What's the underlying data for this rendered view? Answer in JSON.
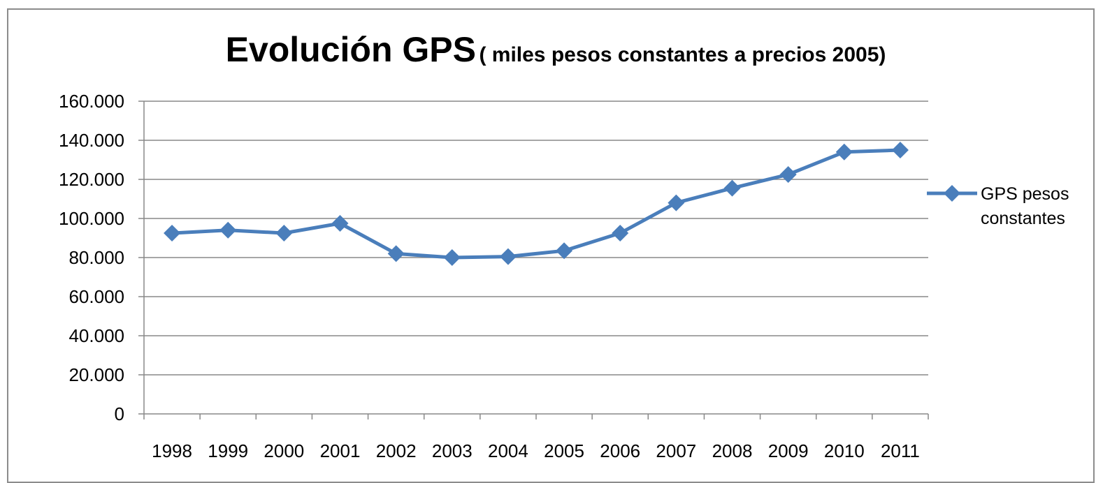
{
  "chart_data": {
    "type": "line",
    "title": "Evolución GPS",
    "subtitle": "( miles pesos constantes a precios 2005)",
    "xlabel": "",
    "ylabel": "",
    "categories": [
      "1998",
      "1999",
      "2000",
      "2001",
      "2002",
      "2003",
      "2004",
      "2005",
      "2006",
      "2007",
      "2008",
      "2009",
      "2010",
      "2011"
    ],
    "series": [
      {
        "name": "GPS pesos constantes",
        "values": [
          92500,
          94000,
          92500,
          97500,
          82000,
          80000,
          80500,
          83500,
          92500,
          108000,
          115500,
          122500,
          134000,
          135000
        ]
      }
    ],
    "ylim": [
      0,
      160000
    ],
    "yticks": [
      0,
      20000,
      40000,
      60000,
      80000,
      100000,
      120000,
      140000,
      160000
    ],
    "ytick_labels": [
      "0",
      "20.000",
      "40.000",
      "60.000",
      "80.000",
      "100.000",
      "120.000",
      "140.000",
      "160.000"
    ],
    "legend": {
      "position": "right",
      "lines": [
        "GPS pesos",
        "constantes"
      ]
    },
    "grid": "horizontal",
    "colors": {
      "line": "#4a7ebb",
      "grid": "#888888",
      "axis": "#888888"
    }
  }
}
